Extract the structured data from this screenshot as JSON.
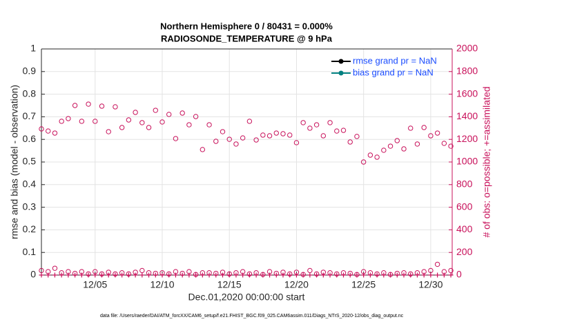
{
  "chart_data": {
    "type": "scatter",
    "title": [
      "Northern Hemisphere 0 / 80431 = 0.000%",
      "RADIOSONDE_TEMPERATURE @ 9 hPa"
    ],
    "ylabel": "rmse and bias (model - observation)",
    "y2label": "# of obs: o=possible; +=assimilated",
    "xlabel": "Dec.01,2020 00:00:00 start",
    "footnote": "data file: /Users/raeder/DAI/ATM_forcXX/CAM6_setup/f.e21.FHIST_BGC.f09_025.CAM6assim.011/Diags_NTrS_2020-12/obs_diag_output.nc",
    "legend_position": "upper right",
    "grid": true,
    "series": [
      {
        "name": "rmse grand pr = NaN",
        "color": "#000000"
      },
      {
        "name": "bias grand pr = NaN",
        "color": "#008080"
      }
    ],
    "x": [
      1,
      1.5,
      2,
      2.5,
      3,
      3.5,
      4,
      4.5,
      5,
      5.5,
      6,
      6.5,
      7,
      7.5,
      8,
      8.5,
      9,
      9.5,
      10,
      10.5,
      11,
      11.5,
      12,
      12.5,
      13,
      13.5,
      14,
      14.5,
      15,
      15.5,
      16,
      16.5,
      17,
      17.5,
      18,
      18.5,
      19,
      19.5,
      20,
      20.5,
      21,
      21.5,
      22,
      22.5,
      23,
      23.5,
      24,
      24.5,
      25,
      25.5,
      26,
      26.5,
      27,
      27.5,
      28,
      28.5,
      29,
      29.5,
      30,
      30.5,
      31,
      31.5
    ],
    "obs_possible": {
      "color": "#c8105a",
      "axis": "y2",
      "values": [
        1293,
        1274,
        1256,
        1360,
        1384,
        1500,
        1360,
        1512,
        1360,
        1494,
        1268,
        1488,
        1305,
        1372,
        1439,
        1348,
        1305,
        1457,
        1354,
        1421,
        1207,
        1433,
        1329,
        1402,
        1110,
        1329,
        1183,
        1268,
        1201,
        1159,
        1213,
        1360,
        1195,
        1238,
        1232,
        1256,
        1250,
        1238,
        1171,
        1348,
        1299,
        1329,
        1232,
        1348,
        1274,
        1280,
        1177,
        1226,
        1000,
        1061,
        1043,
        1104,
        1140,
        1189,
        1116,
        1299,
        1159,
        1305,
        1232,
        1256,
        1165,
        1140
      ]
    },
    "obs_possible_low": {
      "color": "#c8105a",
      "axis": "y2",
      "values": [
        40,
        30,
        60,
        20,
        30,
        15,
        30,
        10,
        30,
        10,
        25,
        10,
        20,
        10,
        25,
        40,
        20,
        15,
        20,
        10,
        30,
        15,
        30,
        5,
        20,
        20,
        15,
        25,
        10,
        20,
        30,
        10,
        20,
        5,
        30,
        15,
        25,
        10,
        25,
        5,
        40,
        10,
        25,
        20,
        10,
        20,
        15,
        5,
        30,
        20,
        10,
        20,
        5,
        15,
        20,
        10,
        20,
        30,
        40,
        95,
        30,
        40
      ]
    },
    "obs_assimilated": {
      "color": "#c8105a",
      "axis": "y2",
      "values": [
        0,
        0,
        0,
        0,
        0,
        0,
        0,
        0,
        0,
        0,
        0,
        0,
        0,
        0,
        0,
        0,
        0,
        0,
        0,
        0,
        0,
        0,
        0,
        0,
        0,
        0,
        0,
        0,
        0,
        0,
        0,
        0,
        0,
        0,
        0,
        0,
        0,
        0,
        0,
        0,
        0,
        0,
        0,
        0,
        0,
        0,
        0,
        0,
        0,
        0,
        0,
        0,
        0,
        0,
        0,
        0,
        0,
        0,
        0,
        0,
        0,
        0
      ]
    },
    "xlim": [
      1,
      31.6
    ],
    "xticks": [
      {
        "value": 5,
        "label": "12/05"
      },
      {
        "value": 10,
        "label": "12/10"
      },
      {
        "value": 15,
        "label": "12/15"
      },
      {
        "value": 20,
        "label": "12/20"
      },
      {
        "value": 25,
        "label": "12/25"
      },
      {
        "value": 30,
        "label": "12/30"
      }
    ],
    "ylim": [
      0,
      1
    ],
    "yticks": [
      0,
      0.1,
      0.2,
      0.3,
      0.4,
      0.5,
      0.6,
      0.7,
      0.8,
      0.9,
      1
    ],
    "y2lim": [
      0,
      2000
    ],
    "y2ticks": [
      0,
      200,
      400,
      600,
      800,
      1000,
      1200,
      1400,
      1600,
      1800,
      2000
    ]
  }
}
